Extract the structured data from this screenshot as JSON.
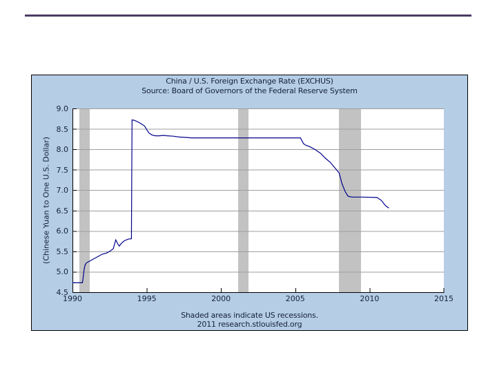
{
  "page": {
    "top_rule_color": "#4a3c63"
  },
  "chart_data": {
    "type": "line",
    "title": "China / U.S. Foreign Exchange Rate (EXCHUS)",
    "source_line": "Source: Board of Governors of the Federal Reserve System",
    "ylabel": "(Chinese Yuan to One U.S. Dollar)",
    "notes": [
      "Shaded areas indicate US recessions.",
      "2011 research.stlouisfed.org"
    ],
    "xlim": [
      1990,
      2015
    ],
    "ylim": [
      4.5,
      9.0
    ],
    "x_ticks": [
      "1990",
      "1995",
      "2000",
      "2005",
      "2010",
      "2015"
    ],
    "y_ticks": [
      "4.5",
      "5.0",
      "5.5",
      "6.0",
      "6.5",
      "7.0",
      "7.5",
      "8.0",
      "8.5",
      "9.0"
    ],
    "grid": true,
    "legend": "none",
    "recessions": [
      [
        1990.46,
        1991.16
      ],
      [
        2001.16,
        2001.86
      ],
      [
        2007.94,
        2009.43
      ]
    ],
    "series": [
      {
        "name": "EXCHUS",
        "points": [
          [
            1990.0,
            4.73
          ],
          [
            1990.67,
            4.73
          ],
          [
            1990.72,
            4.86
          ],
          [
            1990.78,
            5.05
          ],
          [
            1990.85,
            5.17
          ],
          [
            1990.95,
            5.22
          ],
          [
            1991.2,
            5.27
          ],
          [
            1991.5,
            5.33
          ],
          [
            1991.75,
            5.38
          ],
          [
            1992.0,
            5.43
          ],
          [
            1992.3,
            5.46
          ],
          [
            1992.55,
            5.51
          ],
          [
            1992.75,
            5.57
          ],
          [
            1992.85,
            5.7
          ],
          [
            1992.92,
            5.78
          ],
          [
            1993.05,
            5.68
          ],
          [
            1993.15,
            5.63
          ],
          [
            1993.3,
            5.7
          ],
          [
            1993.5,
            5.76
          ],
          [
            1993.75,
            5.8
          ],
          [
            1993.97,
            5.81
          ],
          [
            1994.01,
            8.72
          ],
          [
            1994.15,
            8.71
          ],
          [
            1994.35,
            8.68
          ],
          [
            1994.6,
            8.63
          ],
          [
            1994.85,
            8.57
          ],
          [
            1995.0,
            8.48
          ],
          [
            1995.15,
            8.4
          ],
          [
            1995.35,
            8.35
          ],
          [
            1995.6,
            8.33
          ],
          [
            1995.85,
            8.33
          ],
          [
            1996.1,
            8.34
          ],
          [
            1996.4,
            8.33
          ],
          [
            1996.8,
            8.32
          ],
          [
            1997.2,
            8.3
          ],
          [
            1997.7,
            8.29
          ],
          [
            1998.0,
            8.28
          ],
          [
            2005.35,
            8.28
          ],
          [
            2005.55,
            8.14
          ],
          [
            2005.7,
            8.1
          ],
          [
            2006.0,
            8.06
          ],
          [
            2006.35,
            7.99
          ],
          [
            2006.7,
            7.9
          ],
          [
            2007.0,
            7.79
          ],
          [
            2007.35,
            7.68
          ],
          [
            2007.7,
            7.53
          ],
          [
            2007.95,
            7.42
          ],
          [
            2008.15,
            7.15
          ],
          [
            2008.35,
            6.97
          ],
          [
            2008.55,
            6.85
          ],
          [
            2008.8,
            6.83
          ],
          [
            2009.5,
            6.83
          ],
          [
            2010.5,
            6.82
          ],
          [
            2010.62,
            6.79
          ],
          [
            2010.75,
            6.76
          ],
          [
            2010.88,
            6.71
          ],
          [
            2011.0,
            6.65
          ],
          [
            2011.1,
            6.61
          ],
          [
            2011.3,
            6.56
          ]
        ]
      }
    ],
    "colors": {
      "line": "#00008b",
      "band": "#c2c2c2",
      "grid": "#9e9e9e",
      "panel_bg": "#b5cde5",
      "axis": "#000000",
      "text": "#13213a"
    }
  }
}
